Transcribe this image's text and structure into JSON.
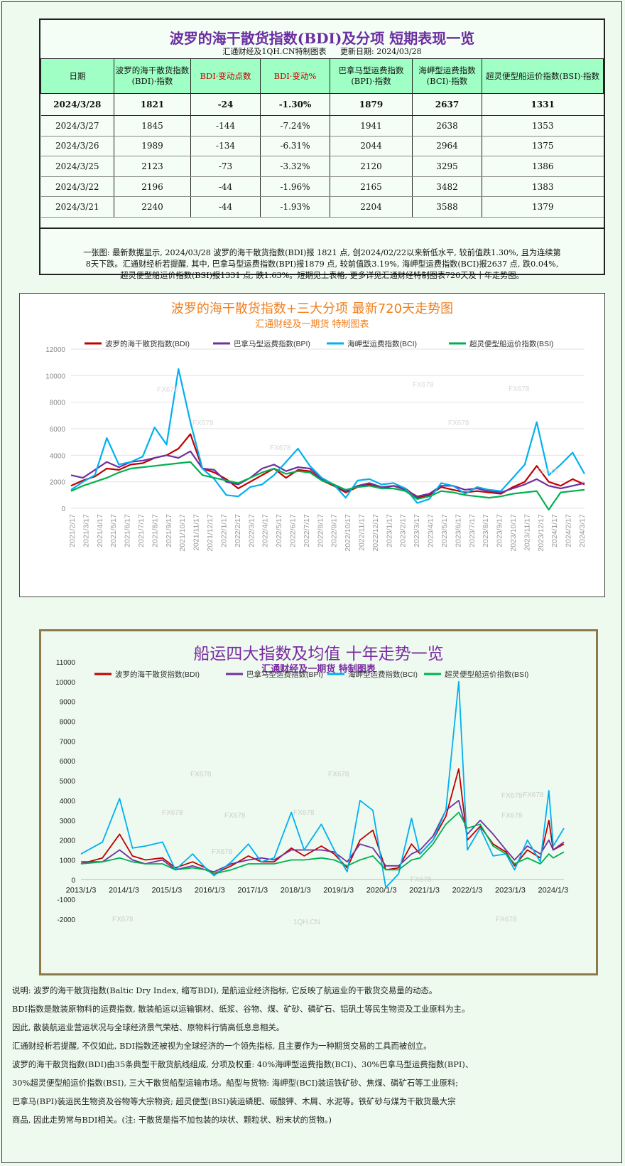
{
  "table": {
    "title": "波罗的海干散货指数(BDI)及分项  短期表现一览",
    "subtitle_source": "汇通财经及1QH.CN特制图表",
    "subtitle_date": "更新日期: 2024/03/28",
    "headers": {
      "date": "日期",
      "bdi": "波罗的海干散货指数(BDI)·指数",
      "change_pts": "BDI·变动点数",
      "change_pct": "BDI·变动%",
      "bpi": "巴拿马型运费指数(BPI)·指数",
      "bci": "海岬型运费指数(BCI)·指数",
      "bsi": "超灵便型船运价指数(BSI)·指数"
    },
    "rows": [
      {
        "date": "2024/3/28",
        "bdi": "1821",
        "chg": "-24",
        "pct": "-1.30%",
        "bpi": "1879",
        "bci": "2637",
        "bsi": "1331"
      },
      {
        "date": "2024/3/27",
        "bdi": "1845",
        "chg": "-144",
        "pct": "-7.24%",
        "bpi": "1941",
        "bci": "2638",
        "bsi": "1353"
      },
      {
        "date": "2024/3/26",
        "bdi": "1989",
        "chg": "-134",
        "pct": "-6.31%",
        "bpi": "2044",
        "bci": "2964",
        "bsi": "1375"
      },
      {
        "date": "2024/3/25",
        "bdi": "2123",
        "chg": "-73",
        "pct": "-3.32%",
        "bpi": "2120",
        "bci": "3295",
        "bsi": "1386"
      },
      {
        "date": "2024/3/22",
        "bdi": "2196",
        "chg": "-44",
        "pct": "-1.96%",
        "bpi": "2165",
        "bci": "3482",
        "bsi": "1383"
      },
      {
        "date": "2024/3/21",
        "bdi": "2240",
        "chg": "-44",
        "pct": "-1.93%",
        "bpi": "2204",
        "bci": "3588",
        "bsi": "1379"
      }
    ],
    "note_line1": "一张图: 最新数据显示, 2024/03/28 波罗的海干散货指数(BDI)报 1821 点, 创2024/02/22以来新低水平, 较前值跌1.30%, 且为连续第",
    "note_line2": "8天下跌。汇通财经析若提醒, 其中, 巴拿马型运费指数(BPI)报1879 点, 较前值跌3.19%, 海岬型运费指数(BCI)报2637 点, 跌0.04%,",
    "note_line3": "超灵便型船运价指数(BSI)报1331 点, 跌1.63%。短期见上表格, 更多详见汇通财经特制图表720天及十年走势图。"
  },
  "chart1_head": {
    "title": "波罗的海干散货指数+三大分项  最新720天走势图",
    "subtitle": "汇通财经及一期货 特制图表"
  },
  "chart2_head": {
    "title": "船运四大指数及均值 十年走势一览",
    "subtitle": "汇通财经及一期货 特制图表"
  },
  "colors": {
    "bdi": "#c00000",
    "bpi": "#7030a0",
    "bci": "#00b0f0",
    "bsi": "#00b050"
  },
  "chart_data": [
    {
      "type": "line",
      "title": "波罗的海干散货指数+三大分项  最新720天走势图",
      "ylim": [
        0,
        12000
      ],
      "yticks": [
        0,
        2000,
        4000,
        6000,
        8000,
        10000,
        12000
      ],
      "xticks": [
        "2021/2/17",
        "2021/3/17",
        "2021/4/17",
        "2021/5/17",
        "2021/6/17",
        "2021/7/17",
        "2021/8/17",
        "2021/9/17",
        "2021/10/17",
        "2021/11/17",
        "2021/12/17",
        "2022/1/17",
        "2022/2/17",
        "2022/3/17",
        "2022/4/17",
        "2022/5/17",
        "2022/6/17",
        "2022/7/17",
        "2022/8/17",
        "2022/9/17",
        "2022/10/17",
        "2022/11/17",
        "2022/12/17",
        "2023/1/17",
        "2023/2/17",
        "2023/3/17",
        "2023/4/17",
        "2023/5/17",
        "2023/6/17",
        "2023/7/17",
        "2023/8/17",
        "2023/9/17",
        "2023/10/17",
        "2023/11/17",
        "2023/12/17",
        "2024/1/17",
        "2024/2/17",
        "2024/3/17"
      ],
      "grid": true,
      "legend_position": "top",
      "series": [
        {
          "name": "波罗的海干散货指数(BDI)",
          "values": [
            1700,
            2100,
            2400,
            3000,
            2900,
            3300,
            3400,
            3800,
            4000,
            4500,
            5600,
            3000,
            2700,
            2200,
            1500,
            2000,
            2500,
            3000,
            2300,
            2900,
            2800,
            2100,
            1700,
            1200,
            1600,
            1800,
            1500,
            1700,
            1500,
            800,
            1000,
            1600,
            1400,
            1200,
            1300,
            1200,
            1100,
            1600,
            2000,
            3200,
            2000,
            1700,
            2200,
            1800
          ]
        },
        {
          "name": "巴拿马型运费指数(BPI)",
          "values": [
            2500,
            2300,
            2900,
            3500,
            3100,
            3500,
            3600,
            3800,
            4000,
            3800,
            4300,
            3000,
            2900,
            2000,
            1800,
            2300,
            3000,
            3300,
            2800,
            3100,
            3000,
            2200,
            1800,
            1300,
            1700,
            1900,
            1600,
            1700,
            1400,
            900,
            1100,
            1700,
            1700,
            1400,
            1500,
            1300,
            1200,
            1500,
            1800,
            2200,
            1700,
            1500,
            1700,
            1900
          ]
        },
        {
          "name": "海岬型运费指数(BCI)",
          "values": [
            1400,
            2000,
            2500,
            5300,
            3300,
            3500,
            3900,
            6100,
            4800,
            10500,
            6500,
            3000,
            2200,
            1000,
            900,
            1600,
            1800,
            2500,
            3500,
            4500,
            3200,
            2300,
            1800,
            800,
            2100,
            2200,
            1800,
            1900,
            1500,
            400,
            700,
            1900,
            1700,
            1100,
            1600,
            1400,
            1300,
            2300,
            3300,
            6500,
            2500,
            3300,
            4200,
            2600
          ]
        },
        {
          "name": "超灵便型船运价指数(BSI)",
          "values": [
            1300,
            1700,
            2000,
            2300,
            2700,
            3000,
            3100,
            3200,
            3300,
            3400,
            3500,
            2500,
            2300,
            2100,
            1900,
            2300,
            2700,
            3000,
            2600,
            2800,
            2700,
            2100,
            1800,
            1400,
            1600,
            1700,
            1500,
            1500,
            1300,
            700,
            900,
            1300,
            1200,
            1000,
            900,
            800,
            900,
            1100,
            1200,
            1300,
            -100,
            1200,
            1300,
            1400
          ]
        }
      ]
    },
    {
      "type": "line",
      "title": "船运四大指数及均值 十年走势一览",
      "ylim": [
        -2000,
        11000
      ],
      "yticks": [
        -2000,
        -1000,
        0,
        1000,
        2000,
        3000,
        4000,
        5000,
        6000,
        7000,
        8000,
        9000,
        10000,
        11000
      ],
      "xticks": [
        "2013/1/3",
        "2014/1/3",
        "2015/1/3",
        "2016/1/3",
        "2017/1/3",
        "2018/1/3",
        "2019/1/3",
        "2020/1/3",
        "2021/1/3",
        "2022/1/3",
        "2023/1/3",
        "2024/1/3"
      ],
      "x_domain": [
        2013.0,
        2024.25
      ],
      "grid": false,
      "legend_position": "top",
      "series": [
        {
          "name": "波罗的海干散货指数(BDI)",
          "t": [
            2013.0,
            2013.5,
            2013.9,
            2014.2,
            2014.5,
            2014.9,
            2015.2,
            2015.6,
            2015.9,
            2016.1,
            2016.5,
            2016.9,
            2017.2,
            2017.5,
            2017.9,
            2018.2,
            2018.6,
            2018.9,
            2019.2,
            2019.5,
            2019.8,
            2020.1,
            2020.4,
            2020.7,
            2020.9,
            2021.2,
            2021.5,
            2021.8,
            2022.0,
            2022.3,
            2022.6,
            2022.9,
            2023.1,
            2023.4,
            2023.7,
            2023.9,
            2024.0,
            2024.25
          ],
          "values": [
            800,
            1100,
            2300,
            1200,
            1000,
            1100,
            600,
            900,
            600,
            300,
            700,
            1200,
            900,
            900,
            1600,
            1200,
            1700,
            1300,
            600,
            2000,
            2500,
            500,
            600,
            1800,
            1300,
            2000,
            3200,
            5600,
            2000,
            2700,
            1800,
            1400,
            700,
            1500,
            1100,
            3000,
            1500,
            1800
          ]
        },
        {
          "name": "巴拿马型运费指数(BPI)",
          "t": [
            2013.0,
            2013.5,
            2013.9,
            2014.2,
            2014.5,
            2014.9,
            2015.2,
            2015.6,
            2015.9,
            2016.1,
            2016.5,
            2016.9,
            2017.2,
            2017.5,
            2017.9,
            2018.2,
            2018.6,
            2018.9,
            2019.2,
            2019.5,
            2019.8,
            2020.1,
            2020.4,
            2020.7,
            2020.9,
            2021.2,
            2021.5,
            2021.8,
            2022.0,
            2022.3,
            2022.6,
            2022.9,
            2023.1,
            2023.4,
            2023.7,
            2023.9,
            2024.0,
            2024.25
          ],
          "values": [
            900,
            900,
            1500,
            1000,
            800,
            1000,
            500,
            700,
            500,
            400,
            800,
            1000,
            1100,
            1000,
            1500,
            1500,
            1500,
            1400,
            900,
            1800,
            1600,
            700,
            700,
            1300,
            1500,
            2200,
            3500,
            4000,
            2300,
            3000,
            2300,
            1500,
            1000,
            1700,
            1300,
            2000,
            1500,
            1900
          ]
        },
        {
          "name": "海岬型运费指数(BCI)",
          "t": [
            2013.0,
            2013.5,
            2013.9,
            2014.2,
            2014.5,
            2014.9,
            2015.2,
            2015.6,
            2015.9,
            2016.1,
            2016.5,
            2016.9,
            2017.2,
            2017.5,
            2017.9,
            2018.2,
            2018.6,
            2018.9,
            2019.2,
            2019.5,
            2019.8,
            2020.1,
            2020.4,
            2020.7,
            2020.9,
            2021.2,
            2021.5,
            2021.8,
            2022.0,
            2022.3,
            2022.6,
            2022.9,
            2023.1,
            2023.4,
            2023.7,
            2023.9,
            2024.0,
            2024.25
          ],
          "values": [
            1300,
            1900,
            4100,
            1600,
            1700,
            1900,
            500,
            1300,
            600,
            200,
            900,
            1800,
            900,
            1100,
            3400,
            1500,
            2800,
            1500,
            400,
            4000,
            3500,
            -400,
            300,
            3100,
            1300,
            2000,
            3500,
            10000,
            1500,
            2600,
            1200,
            1300,
            500,
            2000,
            900,
            4500,
            1700,
            2600
          ]
        },
        {
          "name": "超灵便型船运价指数(BSI)",
          "t": [
            2013.0,
            2013.5,
            2013.9,
            2014.2,
            2014.5,
            2014.9,
            2015.2,
            2015.6,
            2015.9,
            2016.1,
            2016.5,
            2016.9,
            2017.2,
            2017.5,
            2017.9,
            2018.2,
            2018.6,
            2018.9,
            2019.2,
            2019.5,
            2019.8,
            2020.1,
            2020.4,
            2020.7,
            2020.9,
            2021.2,
            2021.5,
            2021.8,
            2022.0,
            2022.3,
            2022.6,
            2022.9,
            2023.1,
            2023.4,
            2023.7,
            2023.9,
            2024.0,
            2024.25
          ],
          "values": [
            800,
            900,
            1100,
            900,
            800,
            800,
            500,
            600,
            500,
            300,
            500,
            800,
            800,
            800,
            1000,
            1000,
            1100,
            1000,
            700,
            1000,
            1200,
            500,
            500,
            1000,
            1100,
            1800,
            2800,
            3400,
            2600,
            2800,
            1700,
            1300,
            800,
            1100,
            800,
            1300,
            1100,
            1400
          ]
        }
      ]
    }
  ],
  "watermarks": {
    "fx": "FX678",
    "qh": "1QH.CN"
  },
  "description": [
    "说明: 波罗的海干散货指数(Baltic Dry Index, 缩写BDI), 是航运业经济指标, 它反映了航运业的干散货交易量的动态。",
    "BDI指数是散装原物料的运费指数, 散装船运以运输钢材、纸浆、谷物、煤、矿砂、磷矿石、铝矾土等民生物资及工业原料为主。",
    "因此, 散装航运业营运状况与全球经济景气荣枯、原物料行情高低息息相关。",
    "汇通财经析若提醒, 不仅如此, BDI指数还被视为全球经济的一个领先指标, 且主要作为一种期货交易的工具而被创立。",
    "波罗的海干散货指数(BDI)由35条典型干散货航线组成, 分项及权重: 40%海岬型运费指数(BCI)、30%巴拿马型运费指数(BPI)、",
    "30%超灵便型船运价指数(BSI), 三大干散货船型运输市场。船型与货物: 海岬型(BCI)装运铁矿砂、焦煤、磷矿石等工业原料;",
    "巴拿马(BPI)装运民生物资及谷物等大宗物资; 超灵便型(BSI)装运磷肥、碳酸钾、木屑、水泥等。铁矿砂与煤为干散货最大宗",
    "商品, 因此走势常与BDI相关。(注: 干散货是指不加包装的块状、颗粒状、粉末状的货物。)"
  ]
}
